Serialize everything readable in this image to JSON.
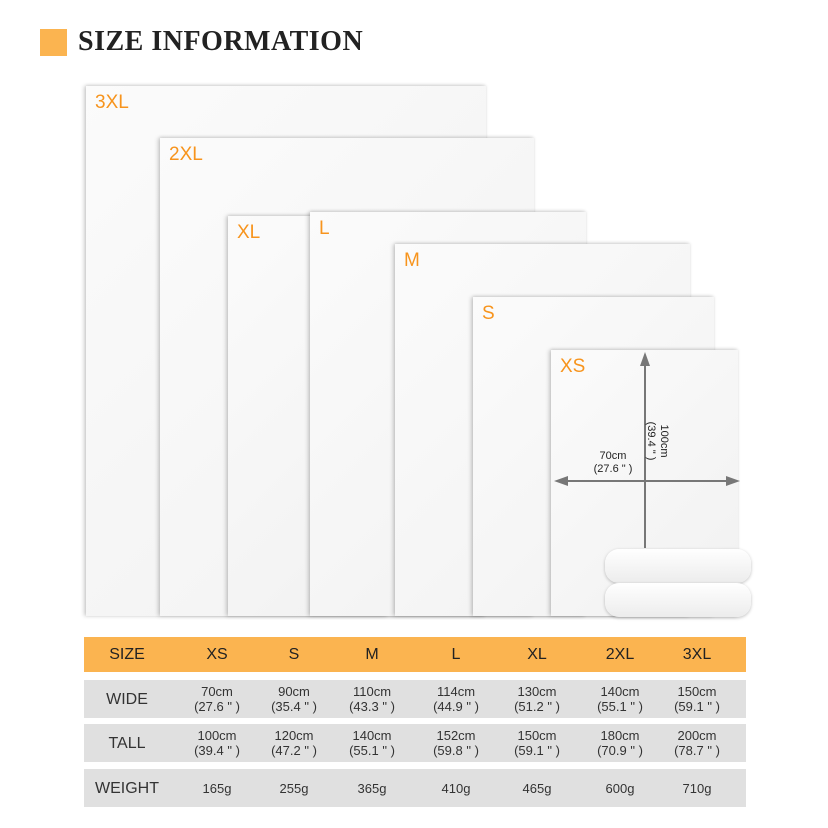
{
  "header": {
    "title": "SIZE INFORMATION",
    "accent": "#fbb450"
  },
  "illustration": {
    "labels": [
      "3XL",
      "2XL",
      "XL",
      "L",
      "M",
      "S",
      "XS"
    ],
    "label_color": "#f7941d",
    "xs_width": "70cm",
    "xs_width_in": "(27.6 \" )",
    "xs_height": "100cm",
    "xs_height_in": "(39.4 \" )"
  },
  "table": {
    "headers": [
      "SIZE",
      "XS",
      "S",
      "M",
      "L",
      "XL",
      "2XL",
      "3XL"
    ],
    "rows": [
      {
        "label": "WIDE",
        "values": [
          [
            "70cm",
            "(27.6 \" )"
          ],
          [
            "90cm",
            "(35.4 \" )"
          ],
          [
            "110cm",
            "(43.3 \" )"
          ],
          [
            "114cm",
            "(44.9 \" )"
          ],
          [
            "130cm",
            "(51.2 \" )"
          ],
          [
            "140cm",
            "(55.1 \" )"
          ],
          [
            "150cm",
            "(59.1 \" )"
          ]
        ]
      },
      {
        "label": "TALL",
        "values": [
          [
            "100cm",
            "(39.4 \" )"
          ],
          [
            "120cm",
            "(47.2 \" )"
          ],
          [
            "140cm",
            "(55.1 \" )"
          ],
          [
            "152cm",
            "(59.8 \" )"
          ],
          [
            "150cm",
            "(59.1 \" )"
          ],
          [
            "180cm",
            "(70.9 \" )"
          ],
          [
            "200cm",
            "(78.7 \" )"
          ]
        ]
      },
      {
        "label": "WEIGHT",
        "values": [
          [
            "165g"
          ],
          [
            "255g"
          ],
          [
            "365g"
          ],
          [
            "410g"
          ],
          [
            "465g"
          ],
          [
            "600g"
          ],
          [
            "710g"
          ]
        ]
      }
    ]
  }
}
